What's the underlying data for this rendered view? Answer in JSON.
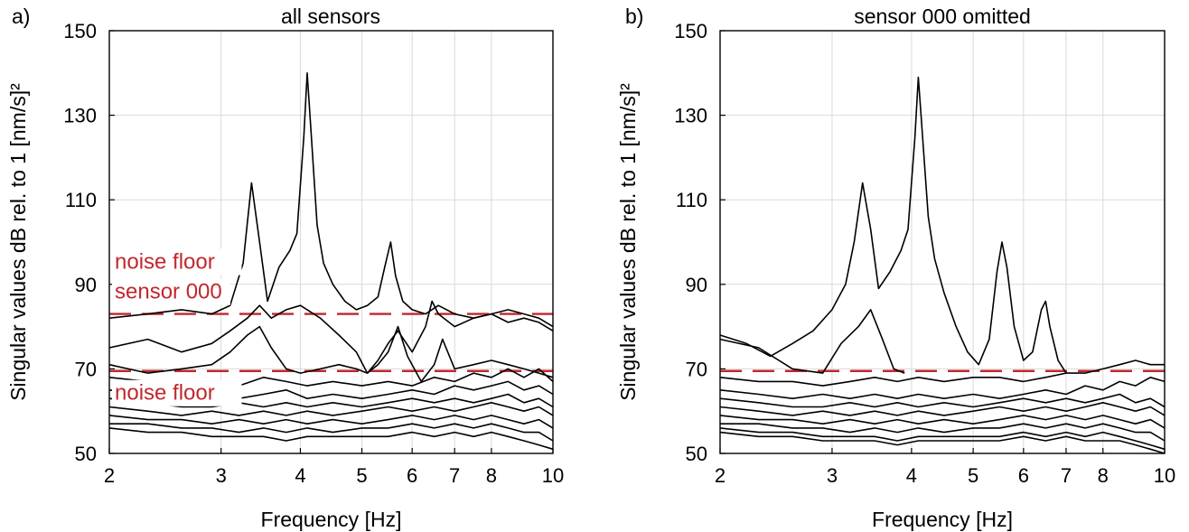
{
  "chart_data": [
    {
      "type": "line",
      "panel_label": "a)",
      "title": "all sensors",
      "xlabel": "Frequency [Hz]",
      "ylabel": "Singular values dB rel. to 1 [nm/s]²",
      "xscale": "log",
      "xlim": [
        2,
        10
      ],
      "ylim": [
        50,
        150
      ],
      "xticks": [
        2,
        3,
        4,
        5,
        6,
        7,
        8,
        10
      ],
      "yticks": [
        50,
        70,
        90,
        110,
        130,
        150
      ],
      "grid": true,
      "noise_lines": [
        {
          "y": 83,
          "color": "#c1272d",
          "label": "noise floor\nsensor 000",
          "label_lines": [
            "noise floor",
            "sensor 000"
          ]
        },
        {
          "y": 69.5,
          "color": "#c1272d",
          "label": "noise floor",
          "label_lines": [
            "noise floor"
          ]
        }
      ],
      "series": [
        {
          "x": [
            2.0,
            2.3,
            2.6,
            2.9,
            3.1,
            3.25,
            3.35,
            3.45,
            3.55,
            3.7,
            3.85,
            3.95,
            4.05,
            4.1,
            4.15,
            4.25,
            4.35,
            4.5,
            4.7,
            4.9,
            5.1,
            5.3,
            5.45,
            5.55,
            5.65,
            5.8,
            6.0,
            6.3,
            6.6,
            7.0,
            7.5,
            8.0,
            8.5,
            9.0,
            9.5,
            10.0
          ],
          "values": [
            82,
            83,
            84,
            83,
            85,
            95,
            114,
            100,
            86,
            94,
            98,
            102,
            125,
            140,
            128,
            104,
            95,
            90,
            86,
            84,
            85,
            87,
            95,
            100,
            92,
            86,
            84,
            83,
            85,
            83,
            82,
            83,
            84,
            83,
            82,
            80
          ]
        },
        {
          "x": [
            2.0,
            2.3,
            2.6,
            2.9,
            3.1,
            3.3,
            3.45,
            3.6,
            3.8,
            4.0,
            4.3,
            4.6,
            4.9,
            5.1,
            5.3,
            5.5,
            5.7,
            6.0,
            6.3,
            6.45,
            6.6,
            7.0,
            7.5,
            8.0,
            8.5,
            9.0,
            9.5,
            10.0
          ],
          "values": [
            75,
            77,
            74,
            76,
            79,
            82,
            85,
            82,
            84,
            85,
            82,
            78,
            74,
            69,
            72,
            76,
            79,
            74,
            80,
            86,
            83,
            80,
            82,
            83,
            81,
            82,
            81,
            79
          ]
        },
        {
          "x": [
            2.0,
            2.3,
            2.6,
            2.9,
            3.1,
            3.3,
            3.45,
            3.6,
            3.8,
            4.0,
            4.3,
            4.6,
            4.9,
            5.1,
            5.3,
            5.5,
            5.7,
            5.9,
            6.2,
            6.5,
            6.7,
            7.0,
            7.5,
            8.0,
            8.5,
            9.0,
            9.5,
            10.0
          ],
          "values": [
            71,
            69,
            70,
            71,
            74,
            78,
            80,
            75,
            70,
            69,
            70,
            71,
            70,
            69,
            71,
            74,
            80,
            73,
            67,
            71,
            77,
            70,
            71,
            72,
            71,
            70,
            69,
            68
          ]
        },
        {
          "x": [
            2.0,
            2.3,
            2.6,
            2.9,
            3.2,
            3.5,
            3.8,
            4.1,
            4.5,
            5.0,
            5.5,
            6.0,
            6.5,
            7.0,
            7.5,
            8.0,
            8.5,
            9.0,
            9.5,
            10.0
          ],
          "values": [
            68,
            67,
            66,
            67,
            66,
            68,
            67,
            66,
            67,
            66,
            67,
            66,
            68,
            67,
            69,
            68,
            70,
            68,
            70,
            67
          ]
        },
        {
          "x": [
            2.0,
            2.3,
            2.6,
            2.9,
            3.2,
            3.5,
            3.8,
            4.1,
            4.5,
            5.0,
            5.5,
            6.0,
            6.5,
            7.0,
            7.5,
            8.0,
            8.5,
            9.0,
            9.5,
            10.0
          ],
          "values": [
            65,
            64,
            63,
            64,
            63,
            64,
            65,
            63,
            64,
            63,
            64,
            65,
            64,
            66,
            65,
            66,
            67,
            65,
            66,
            64
          ]
        },
        {
          "x": [
            2.0,
            2.3,
            2.6,
            2.9,
            3.2,
            3.5,
            3.8,
            4.1,
            4.5,
            5.0,
            5.5,
            6.0,
            6.5,
            7.0,
            7.5,
            8.0,
            8.5,
            9.0,
            9.5,
            10.0
          ],
          "values": [
            63,
            62,
            61,
            61,
            62,
            61,
            62,
            61,
            62,
            61,
            62,
            63,
            62,
            63,
            62,
            63,
            64,
            62,
            63,
            61
          ]
        },
        {
          "x": [
            2.0,
            2.3,
            2.6,
            2.9,
            3.2,
            3.5,
            3.8,
            4.1,
            4.5,
            5.0,
            5.5,
            6.0,
            6.5,
            7.0,
            7.5,
            8.0,
            8.5,
            9.0,
            9.5,
            10.0
          ],
          "values": [
            61,
            60,
            59,
            60,
            59,
            60,
            59,
            60,
            59,
            60,
            61,
            60,
            61,
            60,
            61,
            62,
            61,
            60,
            61,
            59
          ]
        },
        {
          "x": [
            2.0,
            2.3,
            2.6,
            2.9,
            3.2,
            3.5,
            3.8,
            4.1,
            4.5,
            5.0,
            5.5,
            6.0,
            6.5,
            7.0,
            7.5,
            8.0,
            8.5,
            9.0,
            9.5,
            10.0
          ],
          "values": [
            59,
            58,
            58,
            57,
            58,
            57,
            58,
            57,
            58,
            57,
            58,
            59,
            58,
            59,
            58,
            59,
            58,
            57,
            58,
            56
          ]
        },
        {
          "x": [
            2.0,
            2.3,
            2.6,
            2.9,
            3.2,
            3.5,
            3.8,
            4.1,
            4.5,
            5.0,
            5.5,
            6.0,
            6.5,
            7.0,
            7.5,
            8.0,
            8.5,
            9.0,
            9.5,
            10.0
          ],
          "values": [
            57,
            57,
            56,
            56,
            55,
            56,
            55,
            56,
            55,
            56,
            56,
            57,
            56,
            57,
            56,
            57,
            56,
            55,
            55,
            53
          ]
        },
        {
          "x": [
            2.0,
            2.3,
            2.6,
            2.9,
            3.2,
            3.5,
            3.8,
            4.1,
            4.5,
            5.0,
            5.5,
            6.0,
            6.5,
            7.0,
            7.5,
            8.0,
            8.5,
            9.0,
            9.5,
            10.0
          ],
          "values": [
            56,
            55,
            55,
            54,
            54,
            54,
            53,
            54,
            54,
            54,
            54,
            55,
            54,
            55,
            54,
            55,
            54,
            53,
            52,
            51
          ]
        }
      ]
    },
    {
      "type": "line",
      "panel_label": "b)",
      "title": "sensor 000 omitted",
      "xlabel": "Frequency [Hz]",
      "ylabel": "Singular values dB rel. to 1 [nm/s]²",
      "xscale": "log",
      "xlim": [
        2,
        10
      ],
      "ylim": [
        50,
        150
      ],
      "xticks": [
        2,
        3,
        4,
        5,
        6,
        7,
        8,
        10
      ],
      "yticks": [
        50,
        70,
        90,
        110,
        130,
        150
      ],
      "grid": true,
      "noise_lines": [
        {
          "y": 69.5,
          "color": "#c1272d",
          "label": "",
          "label_lines": []
        }
      ],
      "series": [
        {
          "x": [
            2.0,
            2.2,
            2.4,
            2.6,
            2.8,
            3.0,
            3.15,
            3.25,
            3.35,
            3.45,
            3.55,
            3.7,
            3.85,
            3.95,
            4.05,
            4.1,
            4.15,
            4.25,
            4.35,
            4.5,
            4.7,
            4.9,
            5.1,
            5.3,
            5.45,
            5.55,
            5.65,
            5.8,
            6.0,
            6.2,
            6.4,
            6.5,
            6.6,
            6.8,
            7.0
          ],
          "values": [
            78,
            76,
            73,
            76,
            79,
            84,
            90,
            100,
            114,
            103,
            89,
            93,
            98,
            103,
            125,
            139,
            128,
            106,
            96,
            88,
            80,
            74,
            71,
            77,
            93,
            100,
            94,
            80,
            72,
            74,
            84,
            86,
            80,
            72,
            69
          ]
        },
        {
          "x": [
            2.0,
            2.3,
            2.6,
            2.9,
            3.1,
            3.3,
            3.45,
            3.6,
            3.75,
            3.9
          ],
          "values": [
            77,
            75,
            70,
            69,
            76,
            80,
            84,
            77,
            70,
            69
          ]
        },
        {
          "x": [
            2.0,
            2.3,
            2.6,
            2.9,
            3.2,
            3.5,
            3.8,
            4.1,
            4.5,
            5.0,
            5.5,
            6.0,
            6.5,
            7.0,
            7.5,
            8.0,
            8.5,
            9.0,
            9.5,
            10.0
          ],
          "values": [
            68,
            67,
            67,
            66,
            67,
            68,
            67,
            68,
            67,
            68,
            68,
            67,
            68,
            69,
            69,
            70,
            71,
            72,
            71,
            71
          ]
        },
        {
          "x": [
            2.0,
            2.3,
            2.6,
            2.9,
            3.2,
            3.5,
            3.8,
            4.1,
            4.5,
            5.0,
            5.5,
            6.0,
            6.5,
            7.0,
            7.5,
            8.0,
            8.5,
            9.0,
            9.5,
            10.0
          ],
          "values": [
            65,
            64,
            63,
            64,
            63,
            64,
            63,
            64,
            63,
            64,
            63,
            64,
            65,
            64,
            66,
            65,
            67,
            66,
            68,
            67
          ]
        },
        {
          "x": [
            2.0,
            2.3,
            2.6,
            2.9,
            3.2,
            3.5,
            3.8,
            4.1,
            4.5,
            5.0,
            5.5,
            6.0,
            6.5,
            7.0,
            7.5,
            8.0,
            8.5,
            9.0,
            9.5,
            10.0
          ],
          "values": [
            63,
            62,
            61,
            61,
            62,
            61,
            62,
            61,
            62,
            61,
            62,
            63,
            62,
            63,
            62,
            63,
            64,
            62,
            63,
            61
          ]
        },
        {
          "x": [
            2.0,
            2.3,
            2.6,
            2.9,
            3.2,
            3.5,
            3.8,
            4.1,
            4.5,
            5.0,
            5.5,
            6.0,
            6.5,
            7.0,
            7.5,
            8.0,
            8.5,
            9.0,
            9.5,
            10.0
          ],
          "values": [
            61,
            60,
            59,
            60,
            59,
            60,
            59,
            60,
            59,
            60,
            61,
            60,
            61,
            60,
            61,
            62,
            61,
            60,
            61,
            59
          ]
        },
        {
          "x": [
            2.0,
            2.3,
            2.6,
            2.9,
            3.2,
            3.5,
            3.8,
            4.1,
            4.5,
            5.0,
            5.5,
            6.0,
            6.5,
            7.0,
            7.5,
            8.0,
            8.5,
            9.0,
            9.5,
            10.0
          ],
          "values": [
            59,
            58,
            58,
            57,
            58,
            57,
            58,
            57,
            58,
            57,
            58,
            59,
            58,
            59,
            58,
            59,
            58,
            57,
            58,
            56
          ]
        },
        {
          "x": [
            2.0,
            2.3,
            2.6,
            2.9,
            3.2,
            3.5,
            3.8,
            4.1,
            4.5,
            5.0,
            5.5,
            6.0,
            6.5,
            7.0,
            7.5,
            8.0,
            8.5,
            9.0,
            9.5,
            10.0
          ],
          "values": [
            57,
            57,
            56,
            56,
            55,
            56,
            55,
            56,
            55,
            56,
            56,
            57,
            56,
            57,
            56,
            57,
            56,
            55,
            55,
            53
          ]
        },
        {
          "x": [
            2.0,
            2.3,
            2.6,
            2.9,
            3.2,
            3.5,
            3.8,
            4.1,
            4.5,
            5.0,
            5.5,
            6.0,
            6.5,
            7.0,
            7.5,
            8.0,
            8.5,
            9.0,
            9.5,
            10.0
          ],
          "values": [
            56,
            55,
            55,
            54,
            54,
            54,
            53,
            54,
            54,
            54,
            54,
            55,
            54,
            55,
            54,
            55,
            54,
            53,
            52,
            51
          ]
        },
        {
          "x": [
            2.0,
            2.3,
            2.6,
            2.9,
            3.2,
            3.5,
            3.8,
            4.1,
            4.5,
            5.0,
            5.5,
            6.0,
            6.5,
            7.0,
            7.5,
            8.0,
            8.5,
            9.0,
            9.5,
            10.0
          ],
          "values": [
            55,
            54,
            54,
            53,
            53,
            53,
            52,
            53,
            53,
            53,
            53,
            54,
            53,
            54,
            53,
            53,
            53,
            52,
            51,
            50
          ]
        }
      ]
    }
  ]
}
